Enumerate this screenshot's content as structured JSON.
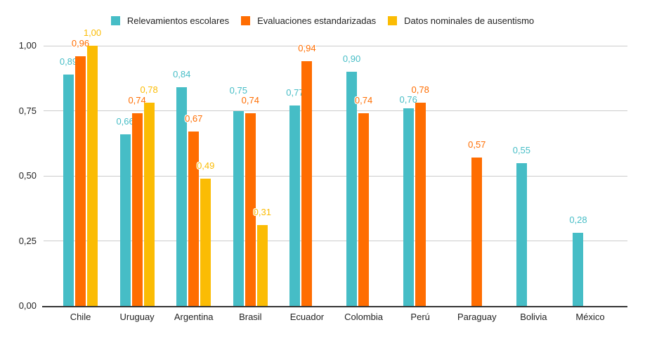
{
  "chart_data": {
    "type": "bar",
    "title": "",
    "categories": [
      "Chile",
      "Uruguay",
      "Argentina",
      "Brasil",
      "Ecuador",
      "Colombia",
      "Perú",
      "Paraguay",
      "Bolivia",
      "México"
    ],
    "series": [
      {
        "name": "Relevamientos escolares",
        "color": "#46BDC6",
        "values": [
          0.89,
          0.66,
          0.84,
          0.75,
          0.77,
          0.9,
          0.76,
          null,
          0.55,
          0.28
        ],
        "labels": [
          "0,89",
          "0,66",
          "0,84",
          "0,75",
          "0,77",
          "0,90",
          "0,76",
          null,
          "0,55",
          "0,28"
        ]
      },
      {
        "name": "Evaluaciones estandarizadas",
        "color": "#FF6D01",
        "values": [
          0.96,
          0.74,
          0.67,
          0.74,
          0.94,
          0.74,
          0.78,
          0.57,
          null,
          null
        ],
        "labels": [
          "0,96",
          "0,74",
          "0,67",
          "0,74",
          "0,94",
          "0,74",
          "0,78",
          "0,57",
          null,
          null
        ]
      },
      {
        "name": "Datos nominales de ausentismo",
        "color": "#FBBC04",
        "values": [
          1.0,
          0.78,
          0.49,
          0.31,
          null,
          null,
          null,
          null,
          null,
          null
        ],
        "labels": [
          "1,00",
          "0,78",
          "0,49",
          "0,31",
          null,
          null,
          null,
          null,
          null,
          null
        ]
      }
    ],
    "y_axis": {
      "range": [
        0,
        1
      ],
      "ticks": [
        0,
        0.25,
        0.5,
        0.75,
        1
      ],
      "tick_labels": [
        "0,00",
        "0,25",
        "0,50",
        "0,75",
        "1,00"
      ]
    },
    "grid": true,
    "legend_position": "top",
    "decimal_separator": ","
  },
  "colors": {
    "background": "#ffffff",
    "grid": "#cccccc",
    "axis_line": "#333333",
    "tick_text": "#222222",
    "legend_text": "#222222"
  }
}
